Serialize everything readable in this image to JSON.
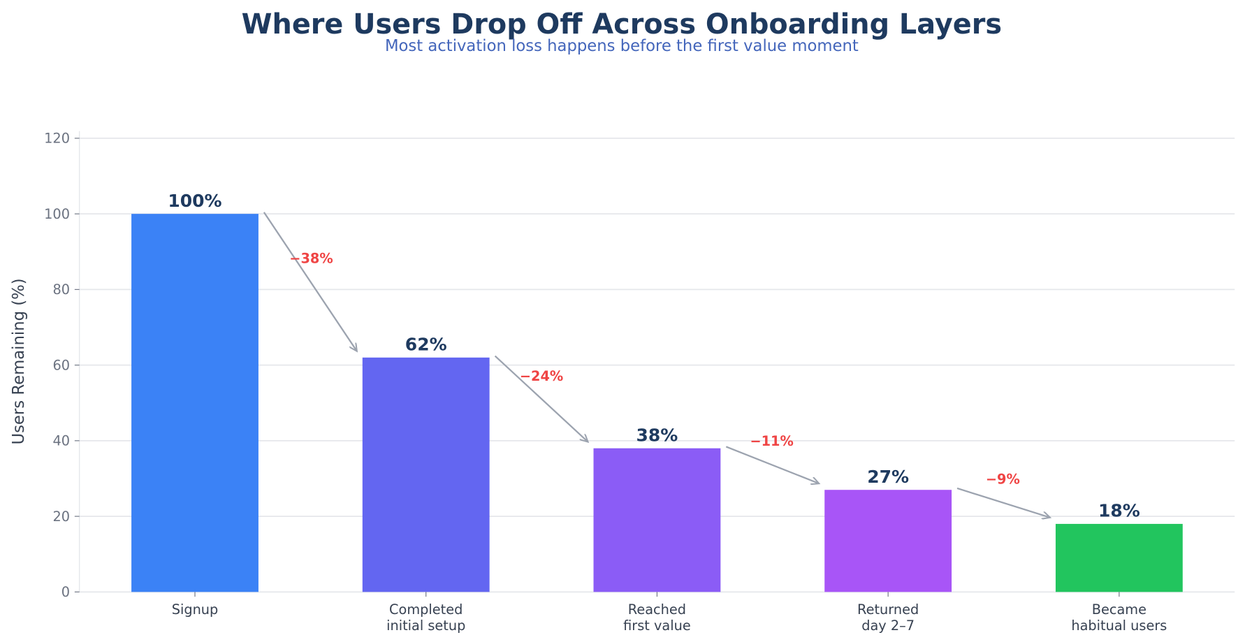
{
  "chart_data": {
    "type": "bar",
    "title": "Where Users Drop Off Across Onboarding Layers",
    "subtitle": "Most activation loss happens before the first value moment",
    "xlabel": "",
    "ylabel": "Users Remaining (%)",
    "ylim": [
      0,
      120
    ],
    "yticks": [
      0,
      20,
      40,
      60,
      80,
      100,
      120
    ],
    "grid": "horizontal",
    "categories": [
      "Signup",
      "Completed\ninitial setup",
      "Reached\nfirst value",
      "Returned\nday 2–7",
      "Became\nhabitual users"
    ],
    "values": [
      100,
      62,
      38,
      27,
      18
    ],
    "value_labels": [
      "100%",
      "62%",
      "38%",
      "27%",
      "18%"
    ],
    "colors": [
      "#3b82f6",
      "#6366f1",
      "#8b5cf6",
      "#a855f7",
      "#22c55e"
    ],
    "drops": [
      "−38%",
      "−24%",
      "−11%",
      "−9%"
    ],
    "drop_color": "#ef4444",
    "arrow_color": "#9ca3af"
  }
}
